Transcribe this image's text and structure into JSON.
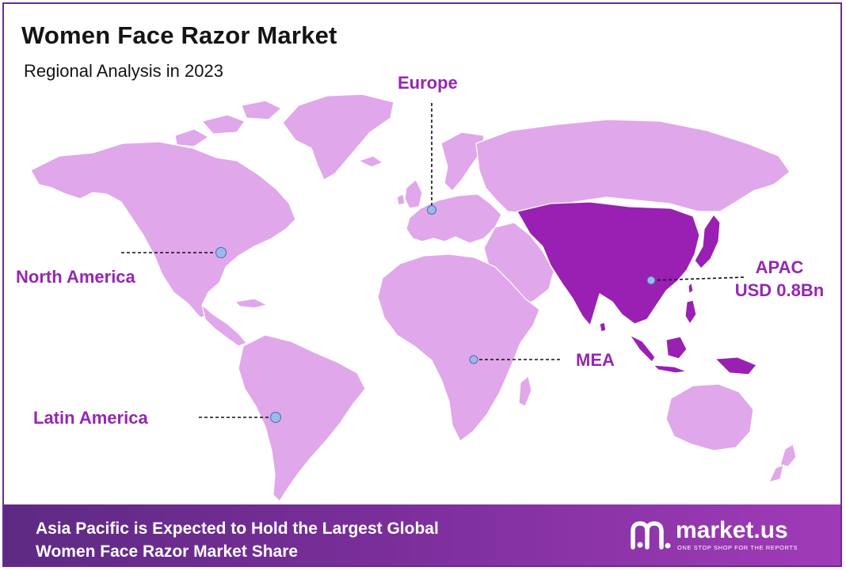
{
  "header": {
    "title": "Women Face Razor Market",
    "subtitle": "Regional Analysis in 2023"
  },
  "map": {
    "highlighted_region": "APAC",
    "colors": {
      "land": "#e0a7ea",
      "land_dark": "#cf8fdc",
      "highlight": "#9a1fb3",
      "highlight_dark": "#7c1793",
      "marker": "#9db8ea",
      "leader_line": "#111111",
      "label": "#9527b0"
    },
    "regions": [
      {
        "id": "europe",
        "label": "Europe"
      },
      {
        "id": "north-america",
        "label": "North America"
      },
      {
        "id": "apac",
        "label": "APAC",
        "value": "USD 0.8Bn"
      },
      {
        "id": "mea",
        "label": "MEA"
      },
      {
        "id": "latin-america",
        "label": "Latin America"
      }
    ]
  },
  "footer": {
    "line1": "Asia Pacific is Expected to Hold the Largest Global",
    "line2": "Women Face Razor Market Share",
    "brand": {
      "name": "market.us",
      "tagline": "ONE STOP SHOP FOR THE REPORTS",
      "icon": "market-us-logo-icon"
    },
    "gradient": [
      "#5d2a83",
      "#a03bb8"
    ]
  }
}
